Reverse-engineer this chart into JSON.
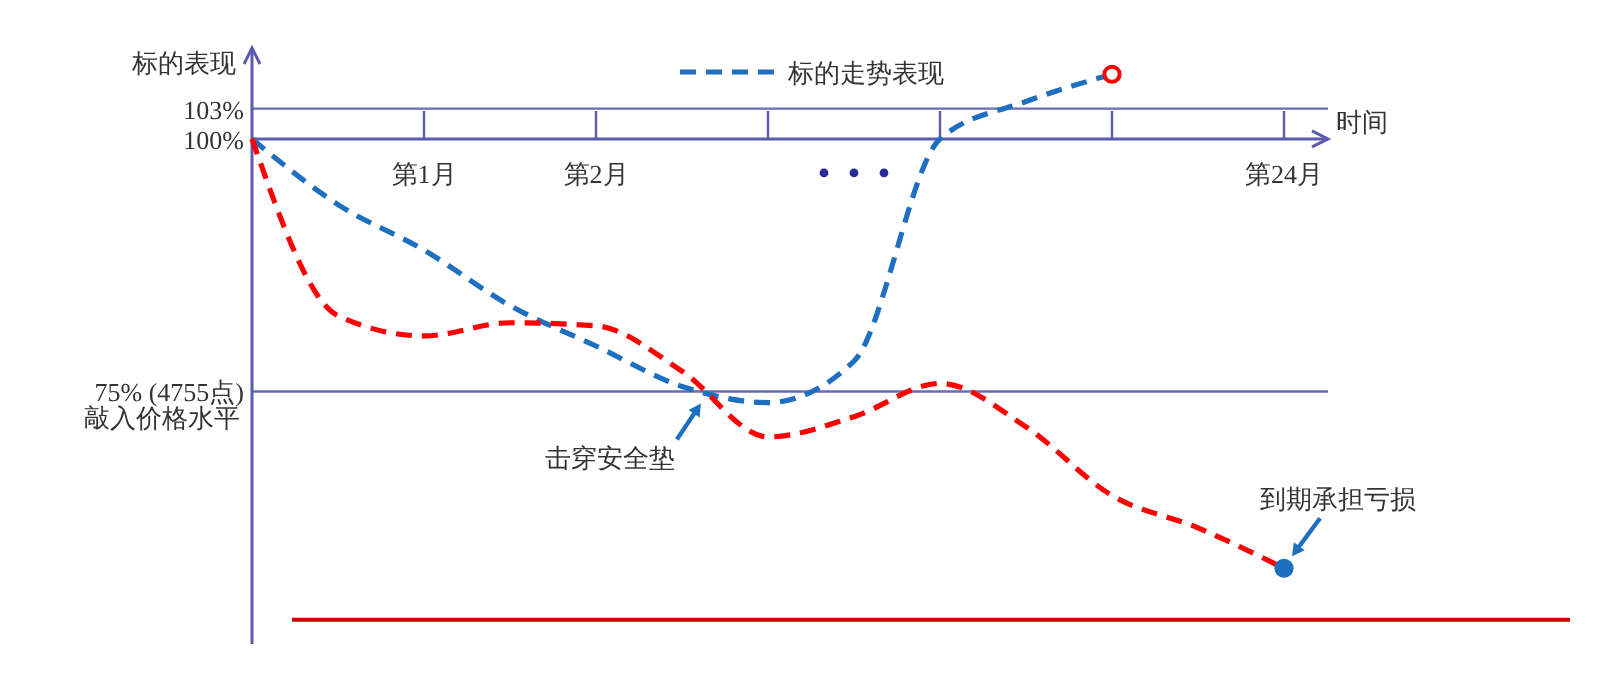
{
  "chart_data": {
    "type": "line",
    "ylabel": "标的表现",
    "xlabel": "时间",
    "categories": [
      null,
      null,
      "第1月",
      null,
      "第2月",
      null,
      null,
      null,
      null,
      null,
      null,
      null,
      "第24月"
    ],
    "ylim": [
      50,
      109
    ],
    "yticks": [
      {
        "value": 75,
        "label": "75% (4755点)"
      },
      {
        "value": 100,
        "label": "100%"
      },
      {
        "value": 103,
        "label": "103%"
      }
    ],
    "series": [
      {
        "name": "标的走势表现",
        "color": "#1f6fc0",
        "line_style": "dashed",
        "marker": "none",
        "values": [
          100,
          93.5,
          89,
          83.5,
          79.5,
          75.5,
          73.9,
          78,
          100,
          103.7,
          106.4,
          null,
          null
        ]
      },
      {
        "color": "#ff0000",
        "line_style": "dashed",
        "marker": "none",
        "values": [
          100,
          82.5,
          80.5,
          81.8,
          81.5,
          77,
          70.5,
          72.5,
          75.8,
          71.5,
          64.7,
          61.5,
          57.5
        ]
      },
      {
        "type": "scatter",
        "color": "#ff0000",
        "marker": "circle",
        "values": [
          null,
          null,
          null,
          null,
          null,
          null,
          null,
          null,
          null,
          null,
          106.4,
          null,
          null
        ]
      },
      {
        "type": "scatter",
        "color": "#1f6fc0",
        "marker": "circle",
        "values": [
          null,
          null,
          null,
          null,
          null,
          null,
          null,
          null,
          null,
          null,
          null,
          null,
          57.5
        ]
      }
    ],
    "ref_lines": [
      {
        "axis": "y",
        "value": 103,
        "color": "#6a6ab8"
      },
      {
        "axis": "y",
        "value": 75,
        "label": "敲入价格水平",
        "color": "#6a6ab8"
      },
      {
        "axis": "y",
        "value": 52.4,
        "color": "#d00000"
      }
    ],
    "annotations": [
      {
        "text": "击穿安全垫",
        "y": 75
      },
      {
        "text": "到期承担亏损",
        "x": "第24月",
        "y": 57.5
      }
    ],
    "legend": "top"
  }
}
